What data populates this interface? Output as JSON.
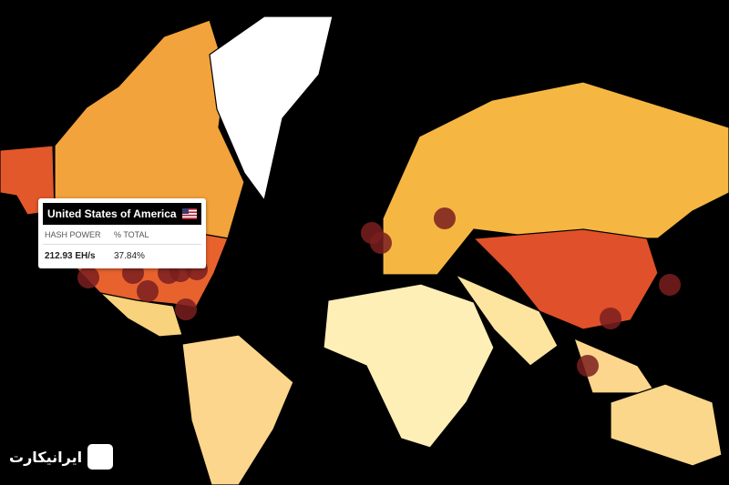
{
  "tooltip": {
    "country": "United States of America",
    "columns": [
      "HASH POWER",
      "% TOTAL"
    ],
    "hash_power": "212.93 EH/s",
    "percent_total": "37.84%"
  },
  "watermark": "ایرانیکارت"
}
